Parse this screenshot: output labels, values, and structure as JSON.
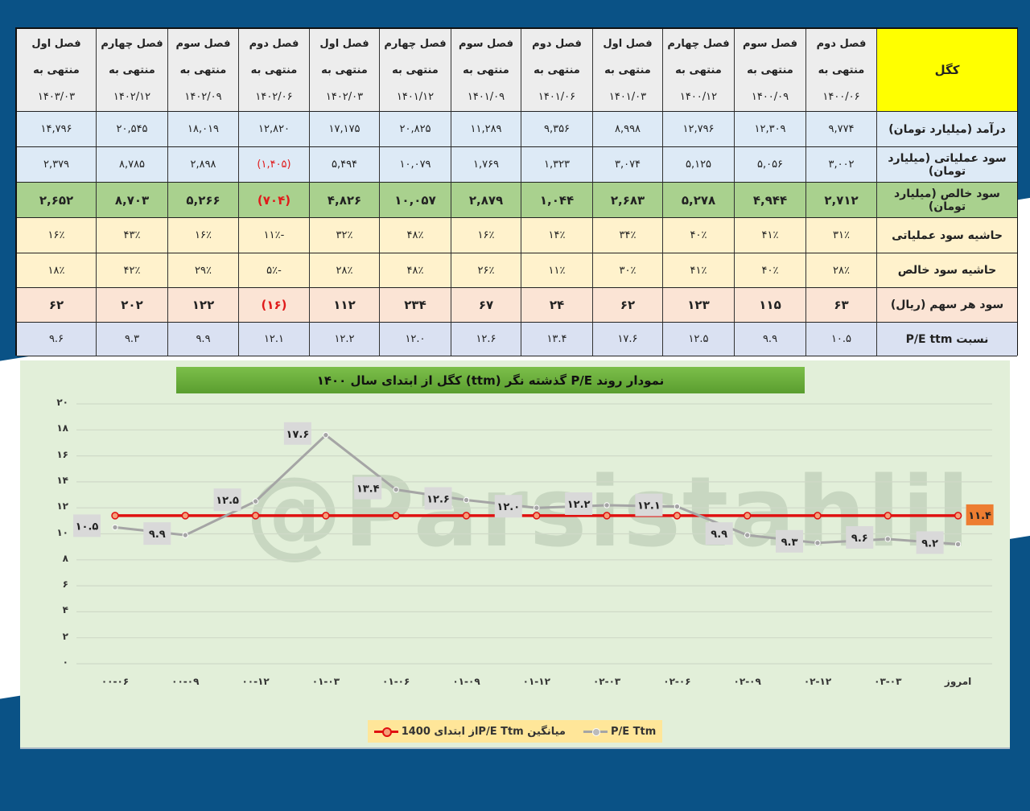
{
  "table": {
    "corner_label": "کگل",
    "columns": [
      {
        "season": "فصل دوم",
        "ending": "منتهی به",
        "date": "۱۴۰۰/۰۶"
      },
      {
        "season": "فصل سوم",
        "ending": "منتهی به",
        "date": "۱۴۰۰/۰۹"
      },
      {
        "season": "فصل چهارم",
        "ending": "منتهی به",
        "date": "۱۴۰۰/۱۲"
      },
      {
        "season": "فصل اول",
        "ending": "منتهی به",
        "date": "۱۴۰۱/۰۳"
      },
      {
        "season": "فصل دوم",
        "ending": "منتهی به",
        "date": "۱۴۰۱/۰۶"
      },
      {
        "season": "فصل سوم",
        "ending": "منتهی به",
        "date": "۱۴۰۱/۰۹"
      },
      {
        "season": "فصل چهارم",
        "ending": "منتهی به",
        "date": "۱۴۰۱/۱۲"
      },
      {
        "season": "فصل اول",
        "ending": "منتهی به",
        "date": "۱۴۰۲/۰۳"
      },
      {
        "season": "فصل دوم",
        "ending": "منتهی به",
        "date": "۱۴۰۲/۰۶"
      },
      {
        "season": "فصل سوم",
        "ending": "منتهی به",
        "date": "۱۴۰۲/۰۹"
      },
      {
        "season": "فصل چهارم",
        "ending": "منتهی به",
        "date": "۱۴۰۲/۱۲"
      },
      {
        "season": "فصل اول",
        "ending": "منتهی به",
        "date": "۱۴۰۳/۰۳"
      }
    ],
    "rows": [
      {
        "label": "درآمد (میلیارد تومان)",
        "cls": "r-rev",
        "values": [
          "۹,۷۷۴",
          "۱۲,۳۰۹",
          "۱۲,۷۹۶",
          "۸,۹۹۸",
          "۹,۳۵۶",
          "۱۱,۲۸۹",
          "۲۰,۸۲۵",
          "۱۷,۱۷۵",
          "۱۲,۸۲۰",
          "۱۸,۰۱۹",
          "۲۰,۵۴۵",
          "۱۴,۷۹۶"
        ]
      },
      {
        "label": "سود عملیاتی (میلیارد تومان)",
        "cls": "r-op",
        "values": [
          "۳,۰۰۲",
          "۵,۰۵۶",
          "۵,۱۲۵",
          "۳,۰۷۴",
          "۱,۳۲۳",
          "۱,۷۶۹",
          "۱۰,۰۷۹",
          "۵,۴۹۴",
          "(۱,۴۰۵)",
          "۲,۸۹۸",
          "۸,۷۸۵",
          "۲,۳۷۹"
        ]
      },
      {
        "label": "سود خالص (میلیارد تومان)",
        "cls": "r-net",
        "values": [
          "۲,۷۱۲",
          "۴,۹۴۴",
          "۵,۲۷۸",
          "۲,۶۸۳",
          "۱,۰۴۴",
          "۲,۸۷۹",
          "۱۰,۰۵۷",
          "۴,۸۲۶",
          "(۷۰۴)",
          "۵,۲۶۶",
          "۸,۷۰۳",
          "۲,۶۵۲"
        ]
      },
      {
        "label": "حاشیه سود عملیاتی",
        "cls": "r-opm",
        "values": [
          "۳۱٪",
          "۴۱٪",
          "۴۰٪",
          "۳۴٪",
          "۱۴٪",
          "۱۶٪",
          "۴۸٪",
          "۳۲٪",
          "-۱۱٪",
          "۱۶٪",
          "۴۳٪",
          "۱۶٪"
        ]
      },
      {
        "label": "حاشیه سود خالص",
        "cls": "r-nm",
        "values": [
          "۲۸٪",
          "۴۰٪",
          "۴۱٪",
          "۳۰٪",
          "۱۱٪",
          "۲۶٪",
          "۴۸٪",
          "۲۸٪",
          "-۵٪",
          "۲۹٪",
          "۴۲٪",
          "۱۸٪"
        ]
      },
      {
        "label": "سود هر سهم (ریال)",
        "cls": "r-eps",
        "values": [
          "۶۳",
          "۱۱۵",
          "۱۲۳",
          "۶۲",
          "۲۴",
          "۶۷",
          "۲۳۴",
          "۱۱۲",
          "(۱۶)",
          "۱۲۲",
          "۲۰۲",
          "۶۲"
        ]
      },
      {
        "label": "نسبت P/E ttm",
        "cls": "r-pe",
        "values": [
          "۱۰.۵",
          "۹.۹",
          "۱۲.۵",
          "۱۷.۶",
          "۱۳.۴",
          "۱۲.۶",
          "۱۲.۰",
          "۱۲.۲",
          "۱۲.۱",
          "۹.۹",
          "۹.۳",
          "۹.۶"
        ]
      }
    ],
    "negative_color": "#e01b1b"
  },
  "chart_data": {
    "type": "line",
    "title": "نمودار روند P/E گذشته نگر (ttm) کگل از ابتدای سال ۱۴۰۰",
    "watermark": "@Parsistahlil",
    "xlabel": "",
    "ylabel": "",
    "ylim": [
      0,
      20
    ],
    "yticks": [
      "۰",
      "۲",
      "۴",
      "۶",
      "۸",
      "۱۰",
      "۱۲",
      "۱۴",
      "۱۶",
      "۱۸",
      "۲۰"
    ],
    "grid": true,
    "legend_position": "bottom",
    "categories": [
      "۰۰-۰۶",
      "۰۰-۰۹",
      "۰۰-۱۲",
      "۰۱-۰۳",
      "۰۱-۰۶",
      "۰۱-۰۹",
      "۰۱-۱۲",
      "۰۲-۰۳",
      "۰۲-۰۶",
      "۰۲-۰۹",
      "۰۲-۱۲",
      "۰۳-۰۳",
      "امروز"
    ],
    "series": [
      {
        "name": "P/E Ttm",
        "color": "#a5a5a5",
        "values": [
          10.5,
          9.9,
          12.5,
          17.6,
          13.4,
          12.6,
          12.0,
          12.2,
          12.1,
          9.9,
          9.3,
          9.6,
          9.2
        ],
        "labels": [
          "۱۰.۵",
          "۹.۹",
          "۱۲.۵",
          "۱۷.۶",
          "۱۳.۴",
          "۱۲.۶",
          "۱۲.۰",
          "۱۲.۲",
          "۱۲.۱",
          "۹.۹",
          "۹.۳",
          "۹.۶",
          "۹.۲"
        ]
      },
      {
        "name": "میانگین P/E Ttm از ابتدای 1400",
        "color": "#e01010",
        "values": [
          11.4,
          11.4,
          11.4,
          11.4,
          11.4,
          11.4,
          11.4,
          11.4,
          11.4,
          11.4,
          11.4,
          11.4,
          11.4
        ],
        "end_label": "۱۱.۴",
        "end_label_bg": "#ed7d31"
      }
    ]
  },
  "legend": {
    "avg_label": "میانگین P/E Ttmاز ابتدای 1400",
    "pe_label": "P/E Ttm"
  }
}
